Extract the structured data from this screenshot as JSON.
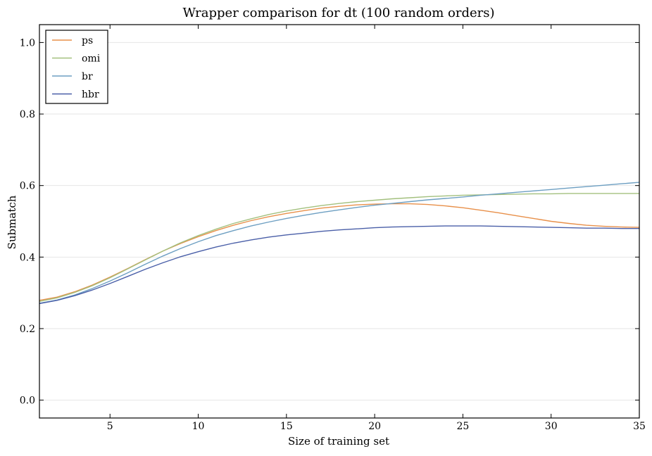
{
  "chart_data": {
    "type": "line",
    "title": "Wrapper comparison for dt (100 random orders)",
    "xlabel": "Size of training set",
    "ylabel": "Submatch",
    "xlim": [
      1,
      35
    ],
    "ylim": [
      -0.05,
      1.05
    ],
    "xticks": [
      5,
      10,
      15,
      20,
      25,
      30,
      35
    ],
    "yticks": [
      0.0,
      0.2,
      0.4,
      0.6,
      0.8,
      1.0
    ],
    "xtick_labels": [
      "5",
      "10",
      "15",
      "20",
      "25",
      "30",
      "35"
    ],
    "ytick_labels": [
      "0.0",
      "0.2",
      "0.4",
      "0.6",
      "0.8",
      "1.0"
    ],
    "grid": true,
    "legend_position": "top-left",
    "x": [
      1,
      2,
      3,
      4,
      5,
      6,
      7,
      8,
      9,
      10,
      11,
      12,
      13,
      14,
      15,
      16,
      17,
      18,
      19,
      20,
      21,
      22,
      23,
      24,
      25,
      26,
      27,
      28,
      29,
      30,
      31,
      32,
      33,
      34,
      35
    ],
    "series": [
      {
        "name": "ps",
        "color": "#e8904a",
        "values": [
          0.279,
          0.288,
          0.303,
          0.322,
          0.344,
          0.368,
          0.393,
          0.417,
          0.438,
          0.457,
          0.474,
          0.489,
          0.502,
          0.513,
          0.522,
          0.53,
          0.537,
          0.542,
          0.546,
          0.548,
          0.549,
          0.549,
          0.547,
          0.543,
          0.538,
          0.531,
          0.524,
          0.516,
          0.508,
          0.5,
          0.494,
          0.489,
          0.486,
          0.484,
          0.483
        ]
      },
      {
        "name": "omi",
        "color": "#a3c07e",
        "values": [
          0.276,
          0.286,
          0.301,
          0.32,
          0.342,
          0.367,
          0.392,
          0.417,
          0.44,
          0.46,
          0.478,
          0.494,
          0.507,
          0.519,
          0.529,
          0.537,
          0.544,
          0.55,
          0.555,
          0.559,
          0.563,
          0.566,
          0.569,
          0.571,
          0.573,
          0.574,
          0.575,
          0.576,
          0.577,
          0.577,
          0.578,
          0.578,
          0.578,
          0.578,
          0.578
        ]
      },
      {
        "name": "br",
        "color": "#6d9fc2",
        "values": [
          0.271,
          0.28,
          0.294,
          0.312,
          0.333,
          0.356,
          0.38,
          0.403,
          0.424,
          0.443,
          0.46,
          0.474,
          0.487,
          0.498,
          0.508,
          0.517,
          0.525,
          0.532,
          0.539,
          0.545,
          0.55,
          0.555,
          0.56,
          0.564,
          0.568,
          0.573,
          0.577,
          0.581,
          0.585,
          0.589,
          0.593,
          0.597,
          0.601,
          0.605,
          0.609
        ]
      },
      {
        "name": "hbr",
        "color": "#4a5fa8",
        "values": [
          0.27,
          0.279,
          0.292,
          0.308,
          0.326,
          0.346,
          0.366,
          0.384,
          0.401,
          0.415,
          0.428,
          0.439,
          0.448,
          0.456,
          0.462,
          0.467,
          0.472,
          0.476,
          0.479,
          0.482,
          0.484,
          0.485,
          0.486,
          0.487,
          0.487,
          0.487,
          0.486,
          0.485,
          0.484,
          0.483,
          0.482,
          0.481,
          0.481,
          0.48,
          0.48
        ]
      }
    ]
  }
}
